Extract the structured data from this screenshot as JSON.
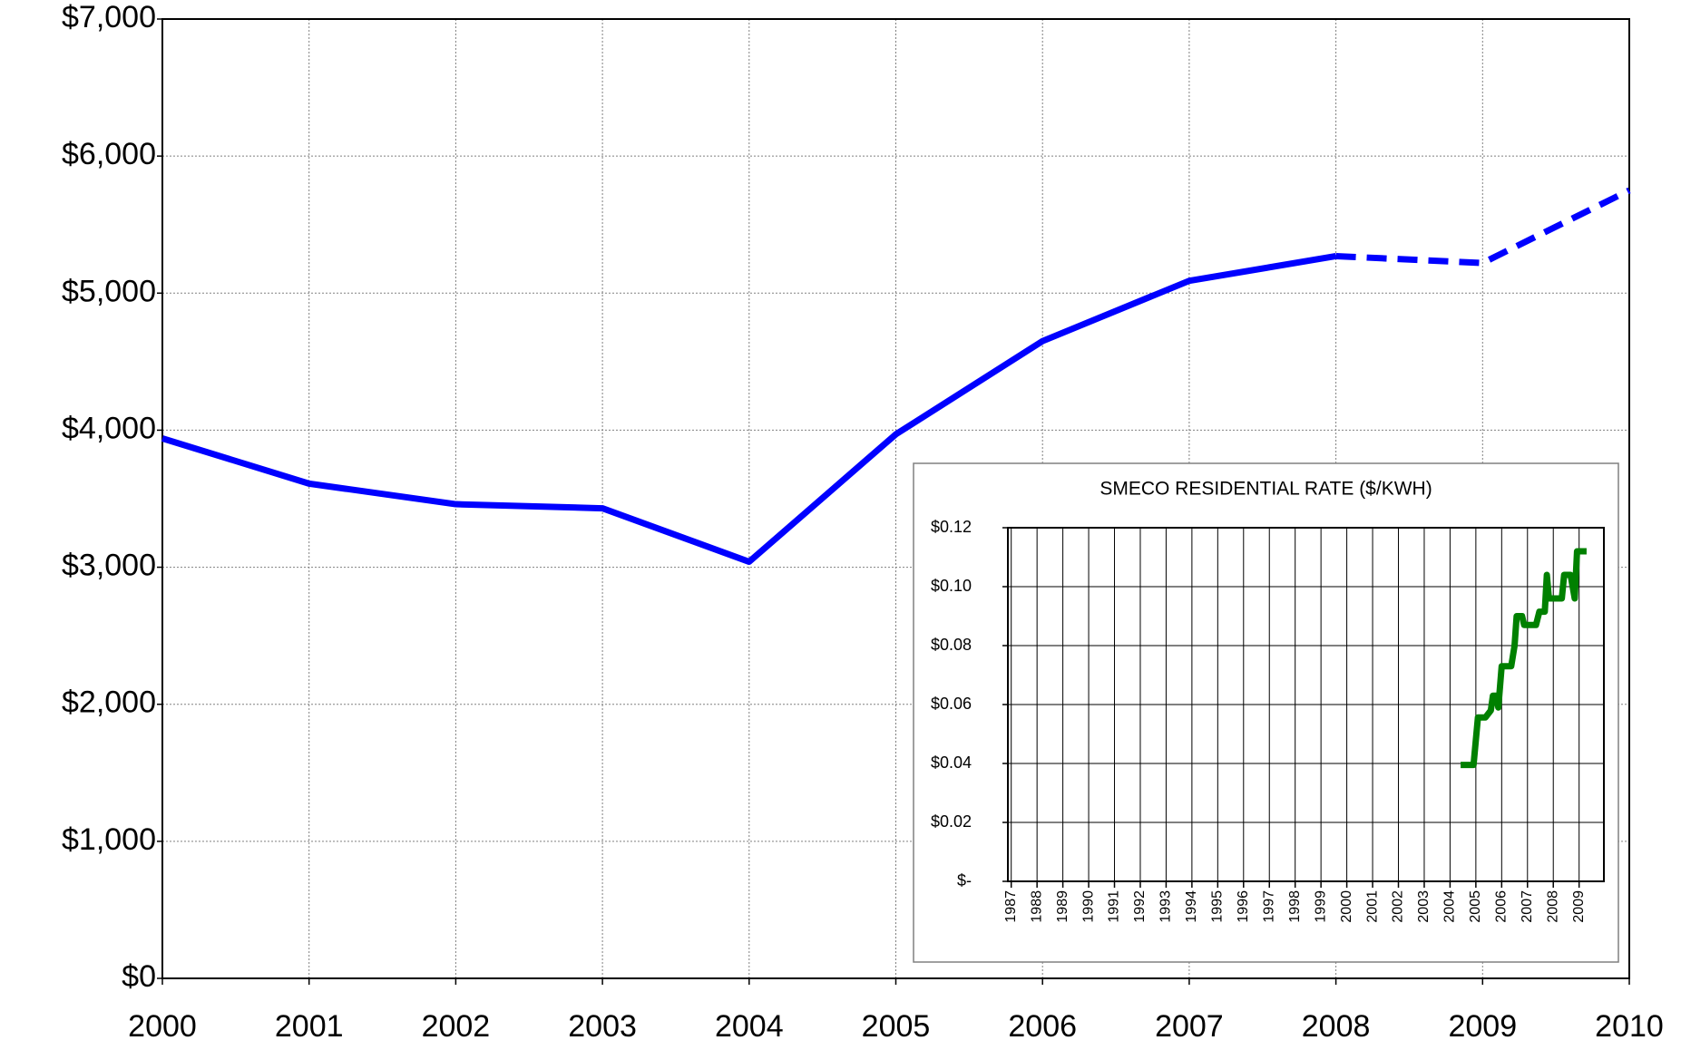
{
  "chart_data": [
    {
      "type": "line",
      "x": [
        2000,
        2001,
        2002,
        2003,
        2004,
        2005,
        2006,
        2007,
        2008,
        2009,
        2010
      ],
      "series": [
        {
          "color": "#0000ff",
          "dashed": false,
          "values": [
            3940,
            3610,
            3460,
            3430,
            3040,
            3970,
            4650,
            5090,
            5270,
            null,
            null
          ]
        },
        {
          "color": "#0000ff",
          "dashed": true,
          "values": [
            null,
            null,
            null,
            null,
            null,
            null,
            null,
            null,
            5270,
            5220,
            5750
          ]
        }
      ],
      "xlim": [
        2000,
        2010
      ],
      "xticks": [
        2000,
        2001,
        2002,
        2003,
        2004,
        2005,
        2006,
        2007,
        2008,
        2009,
        2010
      ],
      "ylim": [
        0,
        7000
      ],
      "yticks": [
        {
          "value": 0,
          "label": "$0"
        },
        {
          "value": 1000,
          "label": "$1,000"
        },
        {
          "value": 2000,
          "label": "$2,000"
        },
        {
          "value": 3000,
          "label": "$3,000"
        },
        {
          "value": 4000,
          "label": "$4,000"
        },
        {
          "value": 5000,
          "label": "$5,000"
        },
        {
          "value": 6000,
          "label": "$6,000"
        },
        {
          "value": 7000,
          "label": "$7,000"
        }
      ],
      "grid": true
    },
    {
      "type": "line",
      "title": "SMECO RESIDENTIAL RATE ($/KWH)",
      "series": [
        {
          "color": "#008000",
          "dashed": false,
          "x": [
            2004.41,
            2004.91,
            2005.08,
            2005.37,
            2005.58,
            2005.66,
            2005.79,
            2005.87,
            2006.0,
            2006.37,
            2006.5,
            2006.58,
            2006.79,
            2006.87,
            2007.33,
            2007.46,
            2007.67,
            2007.75,
            2007.83,
            2008.33,
            2008.42,
            2008.67,
            2008.83,
            2008.92,
            2009.29
          ],
          "values": [
            0.0395,
            0.0395,
            0.0556,
            0.0556,
            0.058,
            0.063,
            0.063,
            0.059,
            0.073,
            0.073,
            0.08,
            0.09,
            0.09,
            0.087,
            0.087,
            0.0915,
            0.0915,
            0.104,
            0.096,
            0.096,
            0.104,
            0.104,
            0.096,
            0.112,
            0.112
          ]
        }
      ],
      "xlim": [
        1986.87,
        2009.96
      ],
      "xticks": [
        1987,
        1988,
        1989,
        1990,
        1991,
        1992,
        1993,
        1994,
        1995,
        1996,
        1997,
        1998,
        1999,
        2000,
        2001,
        2002,
        2003,
        2004,
        2005,
        2006,
        2007,
        2008,
        2009
      ],
      "ylim": [
        0,
        0.12
      ],
      "yticks": [
        {
          "value": 0,
          "label": "$-"
        },
        {
          "value": 0.02,
          "label": "$0.02"
        },
        {
          "value": 0.04,
          "label": "$0.04"
        },
        {
          "value": 0.06,
          "label": "$0.06"
        },
        {
          "value": 0.08,
          "label": "$0.08"
        },
        {
          "value": 0.1,
          "label": "$0.10"
        },
        {
          "value": 0.12,
          "label": "$0.12"
        }
      ],
      "grid": true
    }
  ]
}
